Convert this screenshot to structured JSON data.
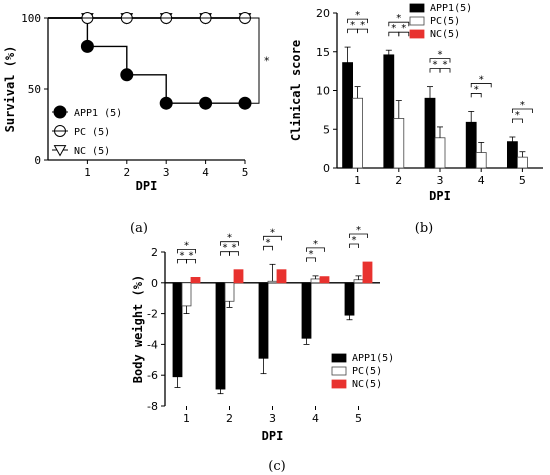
{
  "panel_labels": [
    "(a)",
    "(b)",
    "(c)"
  ],
  "chart_data": [
    {
      "id": "a",
      "type": "line",
      "xlabel": "DPI",
      "ylabel": "Survival (%)",
      "x": [
        1,
        2,
        3,
        4,
        5
      ],
      "xlim": [
        0,
        5
      ],
      "ylim": [
        0,
        100
      ],
      "yticks": [
        0,
        50,
        100
      ],
      "xticks": [
        1,
        2,
        3,
        4,
        5
      ],
      "series": [
        {
          "name": "APP1 (5)",
          "values": [
            80,
            60,
            40,
            40,
            40
          ],
          "marker": "filled-circle",
          "color": "#000000"
        },
        {
          "name": "PC (5)",
          "values": [
            100,
            100,
            100,
            100,
            100
          ],
          "marker": "circle-with-line",
          "color": "#000000"
        },
        {
          "name": "NC (5)",
          "values": [
            100,
            100,
            100,
            100,
            100
          ],
          "marker": "down-triangle",
          "color": "#000000"
        }
      ],
      "annotations": [
        "*"
      ],
      "legend": "bottom-left",
      "grid": false
    },
    {
      "id": "b",
      "type": "bar",
      "xlabel": "DPI",
      "ylabel": "Clinical score",
      "categories": [
        "1",
        "2",
        "3",
        "4",
        "5"
      ],
      "ylim": [
        0,
        20
      ],
      "yticks": [
        0,
        5,
        10,
        15,
        20
      ],
      "series": [
        {
          "name": "APP1(5)",
          "values": [
            13.6,
            14.6,
            9.0,
            5.9,
            3.4
          ],
          "errors": [
            2.0,
            0.6,
            1.5,
            1.4,
            0.6
          ],
          "color": "#000000"
        },
        {
          "name": "PC(5)",
          "values": [
            9.0,
            6.4,
            3.9,
            2.0,
            1.4
          ],
          "errors": [
            1.5,
            2.3,
            1.4,
            1.3,
            0.7
          ],
          "color": "#ffffff"
        },
        {
          "name": "NC(5)",
          "values": [
            0,
            0,
            0,
            0,
            0
          ],
          "errors": [
            0,
            0,
            0,
            0,
            0
          ],
          "color": "#e8322f"
        }
      ],
      "significance": [
        {
          "category": 0,
          "marks": [
            "*",
            "*",
            "*"
          ]
        },
        {
          "category": 1,
          "marks": [
            "*",
            "*",
            "*"
          ]
        },
        {
          "category": 2,
          "marks": [
            "*",
            "*",
            "*"
          ]
        },
        {
          "category": 3,
          "marks": [
            "*",
            "*"
          ]
        },
        {
          "category": 4,
          "marks": [
            "*",
            "*"
          ]
        }
      ],
      "legend": "top-right",
      "grid": false
    },
    {
      "id": "c",
      "type": "bar",
      "xlabel": "DPI",
      "ylabel": "Body weight (%)",
      "categories": [
        "1",
        "2",
        "3",
        "4",
        "5"
      ],
      "ylim": [
        -8,
        2
      ],
      "yticks": [
        -8,
        -6,
        -4,
        -2,
        0,
        2
      ],
      "series": [
        {
          "name": "APP1(5)",
          "values": [
            -6.1,
            -6.9,
            -4.9,
            -3.6,
            -2.1
          ],
          "errors": [
            0.7,
            0.3,
            1.0,
            0.4,
            0.3
          ],
          "color": "#000000"
        },
        {
          "name": "PC(5)",
          "values": [
            -1.5,
            -1.2,
            0.1,
            0.25,
            0.2
          ],
          "errors": [
            0.5,
            0.4,
            1.1,
            0.2,
            0.25
          ],
          "color": "#ffffff"
        },
        {
          "name": "NC(5)",
          "values": [
            0.35,
            0.85,
            0.85,
            0.4,
            1.35
          ],
          "errors": [
            0,
            0,
            0,
            0,
            0
          ],
          "color": "#e8322f"
        }
      ],
      "significance": [
        {
          "category": 0,
          "marks": [
            "*",
            "*",
            "*"
          ]
        },
        {
          "category": 1,
          "marks": [
            "*",
            "*",
            "*"
          ]
        },
        {
          "category": 2,
          "marks": [
            "*",
            "*"
          ]
        },
        {
          "category": 3,
          "marks": [
            "*",
            "*"
          ]
        },
        {
          "category": 4,
          "marks": [
            "*",
            "*"
          ]
        }
      ],
      "legend": "bottom-right",
      "grid": false
    }
  ]
}
